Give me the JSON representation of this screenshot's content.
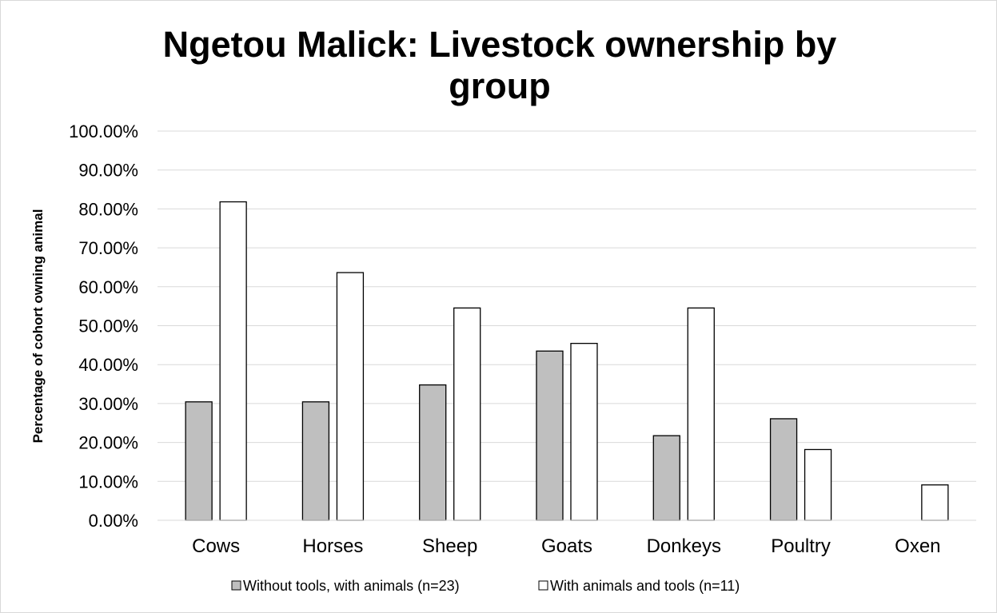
{
  "chart_data": {
    "type": "bar",
    "title": "Ngetou Malick: Livestock ownership by group",
    "title_lines": [
      "Ngetou Malick: Livestock ownership by",
      "group"
    ],
    "xlabel": "",
    "ylabel": "Percentage of cohort owning animal",
    "ylim": [
      0,
      1
    ],
    "ytick_values": [
      0,
      0.1,
      0.2,
      0.3,
      0.4,
      0.5,
      0.6,
      0.7,
      0.8,
      0.9,
      1.0
    ],
    "ytick_labels": [
      "0.00%",
      "10.00%",
      "20.00%",
      "30.00%",
      "40.00%",
      "50.00%",
      "60.00%",
      "70.00%",
      "80.00%",
      "90.00%",
      "100.00%"
    ],
    "categories": [
      "Cows",
      "Horses",
      "Sheep",
      "Goats",
      "Donkeys",
      "Poultry",
      "Oxen"
    ],
    "series": [
      {
        "name": "Without tools, with animals (n=23)",
        "color": "#bfbfbf",
        "values": [
          0.3043,
          0.3043,
          0.3478,
          0.4348,
          0.2174,
          0.2609,
          0
        ]
      },
      {
        "name": "With animals and tools (n=11)",
        "color": "#ffffff",
        "values": [
          0.8182,
          0.6364,
          0.5455,
          0.4545,
          0.5455,
          0.1818,
          0.0909
        ]
      }
    ],
    "grid": true,
    "legend_position": "bottom"
  }
}
